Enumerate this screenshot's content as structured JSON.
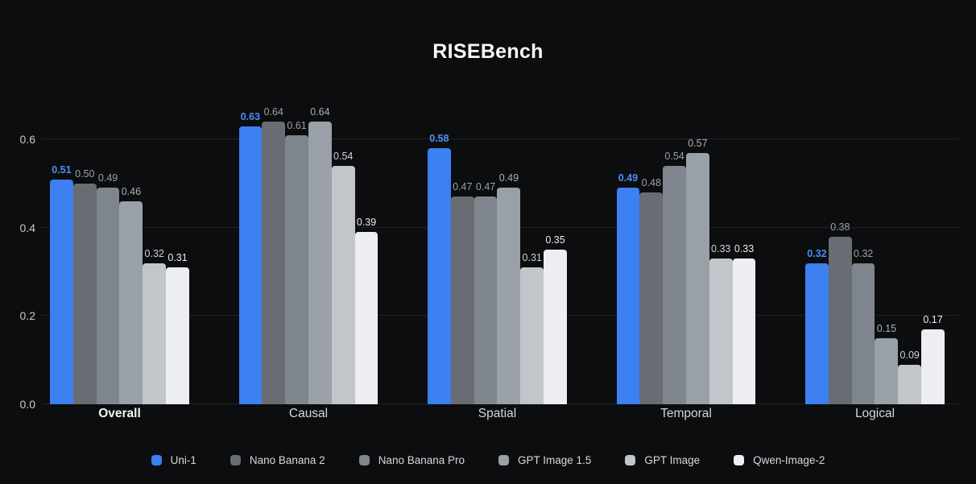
{
  "chart_data": {
    "type": "bar",
    "title": "RISEBench",
    "categories": [
      "Overall",
      "Causal",
      "Spatial",
      "Temporal",
      "Logical"
    ],
    "highlighted_category": "Overall",
    "series": [
      {
        "name": "Uni-1",
        "color": "#3d80f2",
        "label_color": "#4e8ef8",
        "highlighted": true,
        "values": [
          0.51,
          0.63,
          0.58,
          0.49,
          0.32
        ]
      },
      {
        "name": "Nano Banana 2",
        "color": "#686d73",
        "label_color": "#9aa0a6",
        "values": [
          0.5,
          0.64,
          0.47,
          0.48,
          0.38
        ]
      },
      {
        "name": "Nano Banana Pro",
        "color": "#7f858c",
        "label_color": "#9ba1a8",
        "values": [
          0.49,
          0.61,
          0.47,
          0.54,
          0.32
        ]
      },
      {
        "name": "GPT Image 1.5",
        "color": "#99a0a7",
        "label_color": "#aab0b7",
        "values": [
          0.46,
          0.64,
          0.49,
          0.57,
          0.15
        ]
      },
      {
        "name": "GPT Image",
        "color": "#c2c6cb",
        "label_color": "#ced2d7",
        "values": [
          0.32,
          0.54,
          0.31,
          0.33,
          0.09
        ]
      },
      {
        "name": "Qwen-Image-2",
        "color": "#edeef1",
        "label_color": "#e9ebee",
        "values": [
          0.31,
          0.39,
          0.35,
          0.33,
          0.17
        ]
      }
    ],
    "y_ticks": [
      "0.0",
      "0.2",
      "0.4",
      "0.6"
    ],
    "ylim": [
      0,
      0.66
    ],
    "grid": true,
    "legend_position": "bottom",
    "value_label_decimals": 2
  },
  "colors": {
    "background": "#0c0d0f",
    "gridline": "#202327",
    "axis_label": "#c6cacd",
    "category_label": "#d3d7da",
    "title": "#f7f8f9"
  }
}
